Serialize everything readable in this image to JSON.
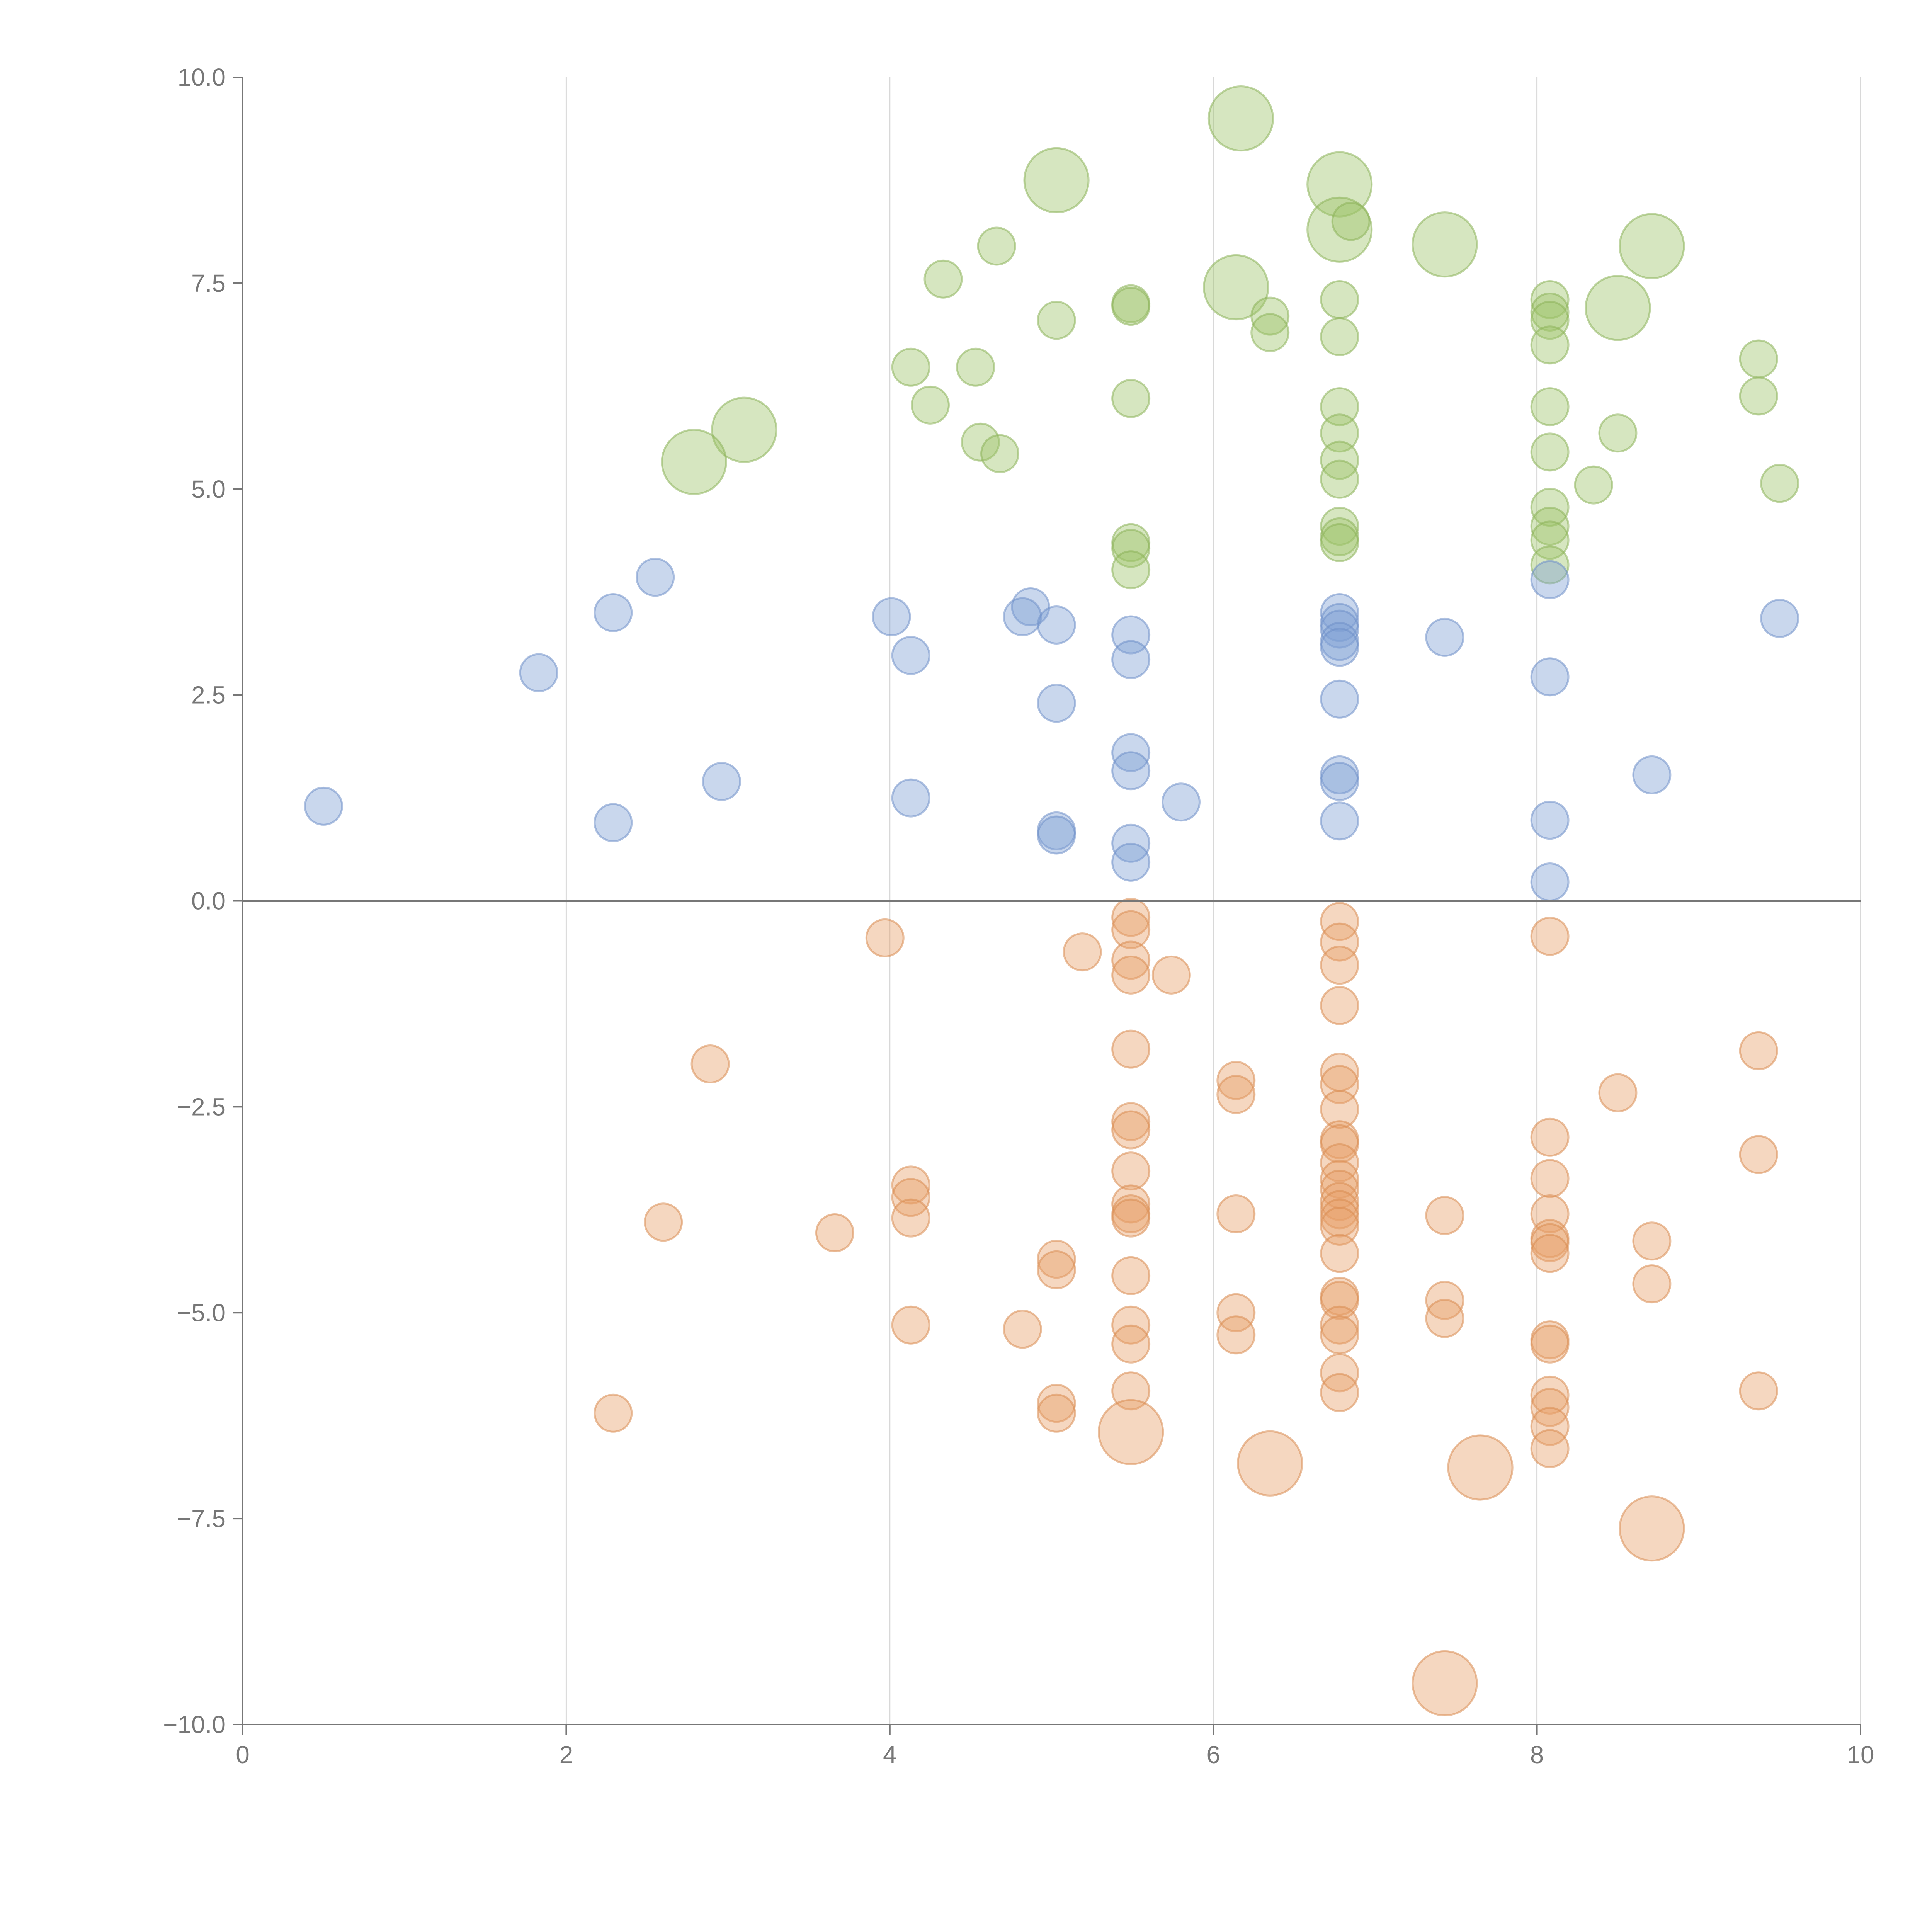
{
  "chart_data": {
    "type": "scatter",
    "title": "",
    "xlabel": "",
    "ylabel": "",
    "xlim": [
      0,
      10
    ],
    "ylim": [
      -10,
      10
    ],
    "grid": "vertical",
    "x_ticks": [
      0,
      2,
      4,
      6,
      8,
      10
    ],
    "x_tick_labels": [
      "0",
      "2",
      "4",
      "6",
      "8",
      "10"
    ],
    "y_ticks": [
      10,
      7.5,
      5,
      2.5,
      0,
      -2.5,
      -5,
      -7.5,
      -10
    ],
    "y_tick_labels": [
      "10.0",
      "7.5",
      "5.0",
      "2.5",
      "0.0",
      "−2.5",
      "−5.0",
      "−7.5",
      "−10.0"
    ],
    "reference_line": {
      "axis": "y",
      "value": 0
    },
    "series": [
      {
        "name": "green",
        "color": "#9dc46a",
        "stroke": "#8db35a",
        "points": [
          {
            "x": 6.17,
            "y": 9.5,
            "size": 3
          },
          {
            "x": 5.03,
            "y": 8.75,
            "size": 3
          },
          {
            "x": 6.78,
            "y": 8.7,
            "size": 3
          },
          {
            "x": 6.78,
            "y": 8.15,
            "size": 3
          },
          {
            "x": 6.85,
            "y": 8.25,
            "size": 1
          },
          {
            "x": 7.43,
            "y": 7.97,
            "size": 3
          },
          {
            "x": 8.71,
            "y": 7.95,
            "size": 3
          },
          {
            "x": 4.66,
            "y": 7.95,
            "size": 1
          },
          {
            "x": 4.33,
            "y": 7.55,
            "size": 1
          },
          {
            "x": 6.14,
            "y": 7.45,
            "size": 3
          },
          {
            "x": 5.49,
            "y": 7.25,
            "size": 1
          },
          {
            "x": 5.49,
            "y": 7.22,
            "size": 1
          },
          {
            "x": 6.78,
            "y": 7.3,
            "size": 1
          },
          {
            "x": 8.08,
            "y": 7.3,
            "size": 1
          },
          {
            "x": 8.08,
            "y": 7.15,
            "size": 1
          },
          {
            "x": 8.08,
            "y": 7.05,
            "size": 1
          },
          {
            "x": 8.5,
            "y": 7.2,
            "size": 3
          },
          {
            "x": 5.03,
            "y": 7.05,
            "size": 1
          },
          {
            "x": 6.35,
            "y": 7.1,
            "size": 1
          },
          {
            "x": 6.35,
            "y": 6.9,
            "size": 1
          },
          {
            "x": 6.78,
            "y": 6.85,
            "size": 1
          },
          {
            "x": 8.08,
            "y": 6.75,
            "size": 1
          },
          {
            "x": 9.37,
            "y": 6.58,
            "size": 1
          },
          {
            "x": 4.13,
            "y": 6.48,
            "size": 1
          },
          {
            "x": 4.53,
            "y": 6.48,
            "size": 1
          },
          {
            "x": 9.37,
            "y": 6.13,
            "size": 1
          },
          {
            "x": 5.49,
            "y": 6.1,
            "size": 1
          },
          {
            "x": 4.25,
            "y": 6.02,
            "size": 1
          },
          {
            "x": 6.78,
            "y": 6.0,
            "size": 1
          },
          {
            "x": 8.08,
            "y": 6.0,
            "size": 1
          },
          {
            "x": 3.1,
            "y": 5.72,
            "size": 3
          },
          {
            "x": 2.79,
            "y": 5.33,
            "size": 3
          },
          {
            "x": 8.5,
            "y": 5.68,
            "size": 1
          },
          {
            "x": 6.78,
            "y": 5.68,
            "size": 1
          },
          {
            "x": 4.56,
            "y": 5.57,
            "size": 1
          },
          {
            "x": 4.68,
            "y": 5.43,
            "size": 1
          },
          {
            "x": 6.78,
            "y": 5.35,
            "size": 1
          },
          {
            "x": 8.08,
            "y": 5.45,
            "size": 1
          },
          {
            "x": 6.78,
            "y": 5.12,
            "size": 1
          },
          {
            "x": 8.35,
            "y": 5.05,
            "size": 1
          },
          {
            "x": 9.5,
            "y": 5.07,
            "size": 1
          },
          {
            "x": 8.08,
            "y": 4.78,
            "size": 1
          },
          {
            "x": 6.78,
            "y": 4.55,
            "size": 1
          },
          {
            "x": 8.08,
            "y": 4.55,
            "size": 1
          },
          {
            "x": 6.78,
            "y": 4.42,
            "size": 1
          },
          {
            "x": 6.78,
            "y": 4.35,
            "size": 1
          },
          {
            "x": 5.49,
            "y": 4.35,
            "size": 1
          },
          {
            "x": 5.49,
            "y": 4.28,
            "size": 1
          },
          {
            "x": 8.08,
            "y": 4.38,
            "size": 1
          },
          {
            "x": 8.08,
            "y": 4.08,
            "size": 1
          },
          {
            "x": 5.49,
            "y": 4.02,
            "size": 1
          }
        ]
      },
      {
        "name": "blue",
        "color": "#7f9fd5",
        "stroke": "#6f8fc8",
        "points": [
          {
            "x": 2.55,
            "y": 3.93,
            "size": 1
          },
          {
            "x": 8.08,
            "y": 3.9,
            "size": 1
          },
          {
            "x": 4.87,
            "y": 3.57,
            "size": 1
          },
          {
            "x": 2.29,
            "y": 3.5,
            "size": 1
          },
          {
            "x": 6.78,
            "y": 3.5,
            "size": 1
          },
          {
            "x": 4.01,
            "y": 3.45,
            "size": 1
          },
          {
            "x": 4.82,
            "y": 3.45,
            "size": 1
          },
          {
            "x": 6.78,
            "y": 3.38,
            "size": 1
          },
          {
            "x": 9.5,
            "y": 3.43,
            "size": 1
          },
          {
            "x": 5.03,
            "y": 3.35,
            "size": 1
          },
          {
            "x": 6.78,
            "y": 3.3,
            "size": 1
          },
          {
            "x": 5.49,
            "y": 3.23,
            "size": 1
          },
          {
            "x": 7.43,
            "y": 3.2,
            "size": 1
          },
          {
            "x": 6.78,
            "y": 3.15,
            "size": 1
          },
          {
            "x": 6.78,
            "y": 3.08,
            "size": 1
          },
          {
            "x": 4.13,
            "y": 2.98,
            "size": 1
          },
          {
            "x": 5.49,
            "y": 2.93,
            "size": 1
          },
          {
            "x": 1.83,
            "y": 2.77,
            "size": 1
          },
          {
            "x": 8.08,
            "y": 2.72,
            "size": 1
          },
          {
            "x": 6.78,
            "y": 2.45,
            "size": 1
          },
          {
            "x": 5.03,
            "y": 2.4,
            "size": 1
          },
          {
            "x": 5.49,
            "y": 1.8,
            "size": 1
          },
          {
            "x": 5.49,
            "y": 1.58,
            "size": 1
          },
          {
            "x": 8.71,
            "y": 1.53,
            "size": 1
          },
          {
            "x": 6.78,
            "y": 1.53,
            "size": 1
          },
          {
            "x": 2.96,
            "y": 1.45,
            "size": 1
          },
          {
            "x": 6.78,
            "y": 1.45,
            "size": 1
          },
          {
            "x": 4.13,
            "y": 1.25,
            "size": 1
          },
          {
            "x": 5.8,
            "y": 1.2,
            "size": 1
          },
          {
            "x": 0.5,
            "y": 1.15,
            "size": 1
          },
          {
            "x": 8.08,
            "y": 0.98,
            "size": 1
          },
          {
            "x": 2.29,
            "y": 0.95,
            "size": 1
          },
          {
            "x": 6.78,
            "y": 0.97,
            "size": 1
          },
          {
            "x": 5.03,
            "y": 0.85,
            "size": 1
          },
          {
            "x": 5.03,
            "y": 0.8,
            "size": 1
          },
          {
            "x": 5.49,
            "y": 0.7,
            "size": 1
          },
          {
            "x": 5.49,
            "y": 0.47,
            "size": 1
          },
          {
            "x": 8.08,
            "y": 0.23,
            "size": 1
          }
        ]
      },
      {
        "name": "orange",
        "color": "#e8a06a",
        "stroke": "#d98c52",
        "points": [
          {
            "x": 5.49,
            "y": -0.2,
            "size": 1
          },
          {
            "x": 6.78,
            "y": -0.25,
            "size": 1
          },
          {
            "x": 5.49,
            "y": -0.35,
            "size": 1
          },
          {
            "x": 3.97,
            "y": -0.45,
            "size": 1
          },
          {
            "x": 8.08,
            "y": -0.43,
            "size": 1
          },
          {
            "x": 6.78,
            "y": -0.5,
            "size": 1
          },
          {
            "x": 5.19,
            "y": -0.62,
            "size": 1
          },
          {
            "x": 5.49,
            "y": -0.72,
            "size": 1
          },
          {
            "x": 6.78,
            "y": -0.78,
            "size": 1
          },
          {
            "x": 5.74,
            "y": -0.9,
            "size": 1
          },
          {
            "x": 5.49,
            "y": -0.9,
            "size": 1
          },
          {
            "x": 6.78,
            "y": -1.27,
            "size": 1
          },
          {
            "x": 5.49,
            "y": -1.8,
            "size": 1
          },
          {
            "x": 9.37,
            "y": -1.82,
            "size": 1
          },
          {
            "x": 2.89,
            "y": -1.98,
            "size": 1
          },
          {
            "x": 6.78,
            "y": -2.08,
            "size": 1
          },
          {
            "x": 6.14,
            "y": -2.18,
            "size": 1
          },
          {
            "x": 6.78,
            "y": -2.23,
            "size": 1
          },
          {
            "x": 8.5,
            "y": -2.33,
            "size": 1
          },
          {
            "x": 6.14,
            "y": -2.35,
            "size": 1
          },
          {
            "x": 6.78,
            "y": -2.53,
            "size": 1
          },
          {
            "x": 5.49,
            "y": -2.68,
            "size": 1
          },
          {
            "x": 5.49,
            "y": -2.78,
            "size": 1
          },
          {
            "x": 8.08,
            "y": -2.87,
            "size": 1
          },
          {
            "x": 6.78,
            "y": -2.9,
            "size": 1
          },
          {
            "x": 6.78,
            "y": -2.95,
            "size": 1
          },
          {
            "x": 9.37,
            "y": -3.08,
            "size": 1
          },
          {
            "x": 6.78,
            "y": -3.18,
            "size": 1
          },
          {
            "x": 5.49,
            "y": -3.28,
            "size": 1
          },
          {
            "x": 8.08,
            "y": -3.37,
            "size": 1
          },
          {
            "x": 6.78,
            "y": -3.38,
            "size": 1
          },
          {
            "x": 4.13,
            "y": -3.45,
            "size": 1
          },
          {
            "x": 6.78,
            "y": -3.5,
            "size": 1
          },
          {
            "x": 4.13,
            "y": -3.6,
            "size": 1
          },
          {
            "x": 6.78,
            "y": -3.65,
            "size": 1
          },
          {
            "x": 5.49,
            "y": -3.68,
            "size": 1
          },
          {
            "x": 6.78,
            "y": -3.75,
            "size": 1
          },
          {
            "x": 5.49,
            "y": -3.8,
            "size": 1
          },
          {
            "x": 6.14,
            "y": -3.8,
            "size": 1
          },
          {
            "x": 8.08,
            "y": -3.8,
            "size": 1
          },
          {
            "x": 7.43,
            "y": -3.82,
            "size": 1
          },
          {
            "x": 4.13,
            "y": -3.85,
            "size": 1
          },
          {
            "x": 5.49,
            "y": -3.85,
            "size": 1
          },
          {
            "x": 6.78,
            "y": -3.85,
            "size": 1
          },
          {
            "x": 2.6,
            "y": -3.9,
            "size": 1
          },
          {
            "x": 6.78,
            "y": -3.95,
            "size": 1
          },
          {
            "x": 3.66,
            "y": -4.03,
            "size": 1
          },
          {
            "x": 8.71,
            "y": -4.13,
            "size": 1
          },
          {
            "x": 8.08,
            "y": -4.1,
            "size": 1
          },
          {
            "x": 8.08,
            "y": -4.15,
            "size": 1
          },
          {
            "x": 8.08,
            "y": -4.28,
            "size": 1
          },
          {
            "x": 6.78,
            "y": -4.28,
            "size": 1
          },
          {
            "x": 5.03,
            "y": -4.35,
            "size": 1
          },
          {
            "x": 5.03,
            "y": -4.48,
            "size": 1
          },
          {
            "x": 5.49,
            "y": -4.55,
            "size": 1
          },
          {
            "x": 8.71,
            "y": -4.65,
            "size": 1
          },
          {
            "x": 6.78,
            "y": -4.8,
            "size": 1
          },
          {
            "x": 6.78,
            "y": -4.85,
            "size": 1
          },
          {
            "x": 7.43,
            "y": -4.85,
            "size": 1
          },
          {
            "x": 6.14,
            "y": -5.0,
            "size": 1
          },
          {
            "x": 7.43,
            "y": -5.07,
            "size": 1
          },
          {
            "x": 4.13,
            "y": -5.15,
            "size": 1
          },
          {
            "x": 5.49,
            "y": -5.15,
            "size": 1
          },
          {
            "x": 6.78,
            "y": -5.15,
            "size": 1
          },
          {
            "x": 4.82,
            "y": -5.2,
            "size": 1
          },
          {
            "x": 6.14,
            "y": -5.27,
            "size": 1
          },
          {
            "x": 6.78,
            "y": -5.27,
            "size": 1
          },
          {
            "x": 8.08,
            "y": -5.33,
            "size": 1
          },
          {
            "x": 8.08,
            "y": -5.38,
            "size": 1
          },
          {
            "x": 5.49,
            "y": -5.38,
            "size": 1
          },
          {
            "x": 6.78,
            "y": -5.73,
            "size": 1
          },
          {
            "x": 5.49,
            "y": -5.95,
            "size": 1
          },
          {
            "x": 9.37,
            "y": -5.95,
            "size": 1
          },
          {
            "x": 6.78,
            "y": -5.97,
            "size": 1
          },
          {
            "x": 8.08,
            "y": -6.0,
            "size": 1
          },
          {
            "x": 5.03,
            "y": -6.1,
            "size": 1
          },
          {
            "x": 8.08,
            "y": -6.15,
            "size": 1
          },
          {
            "x": 2.29,
            "y": -6.22,
            "size": 1
          },
          {
            "x": 5.03,
            "y": -6.22,
            "size": 1
          },
          {
            "x": 8.08,
            "y": -6.38,
            "size": 1
          },
          {
            "x": 5.49,
            "y": -6.45,
            "size": 3
          },
          {
            "x": 8.08,
            "y": -6.65,
            "size": 1
          },
          {
            "x": 6.35,
            "y": -6.83,
            "size": 3
          },
          {
            "x": 7.65,
            "y": -6.88,
            "size": 3
          },
          {
            "x": 8.71,
            "y": -7.62,
            "size": 3
          },
          {
            "x": 7.43,
            "y": -9.5,
            "size": 3
          }
        ]
      }
    ]
  }
}
